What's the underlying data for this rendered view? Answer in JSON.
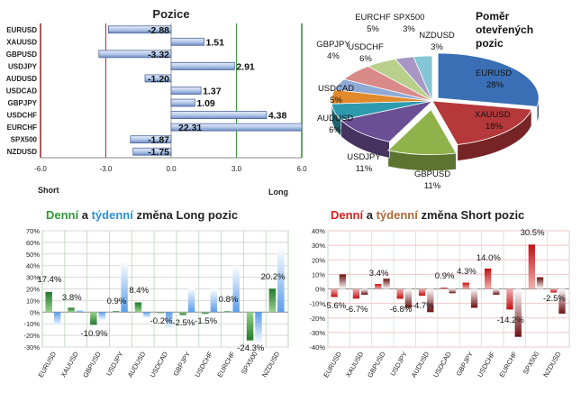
{
  "chart_data": [
    {
      "type": "bar",
      "orientation": "horizontal",
      "title": "Pozice",
      "categories": [
        "EURUSD",
        "XAUUSD",
        "GBPUSD",
        "USDJPY",
        "AUDUSD",
        "USDCAD",
        "GBPJPY",
        "USDCHF",
        "EURCHF",
        "SPX500",
        "NZDUSD"
      ],
      "values": [
        -2.88,
        1.51,
        -3.32,
        2.91,
        -1.2,
        1.37,
        1.09,
        4.38,
        22.31,
        -1.87,
        -1.75
      ],
      "value_labels": [
        "-2.88",
        "1.51",
        "-3.32",
        "2.91",
        "-1.20",
        "1.37",
        "1.09",
        "4.38",
        "22.31",
        "-1.87",
        "-1.75"
      ],
      "xlim": [
        -6,
        6
      ],
      "x_ticks": [
        "-6.0",
        "-3.0",
        "0.0",
        "3.0",
        "6.0"
      ],
      "left_label": "Short",
      "right_label": "Long",
      "grid": true
    },
    {
      "type": "pie",
      "title": "Poměr otevřených pozic",
      "slices": [
        {
          "name": "EURUSD",
          "pct": "28%",
          "value": 28,
          "color": "#3a6fb5"
        },
        {
          "name": "XAUUSD",
          "pct": "18%",
          "value": 18,
          "color": "#b5383a"
        },
        {
          "name": "GBPUSD",
          "pct": "11%",
          "value": 11,
          "color": "#8fb24a"
        },
        {
          "name": "USDJPY",
          "pct": "11%",
          "value": 11,
          "color": "#6b4f94"
        },
        {
          "name": "AUDUSD",
          "pct": "6%",
          "value": 6,
          "color": "#2e9ab0"
        },
        {
          "name": "USDCAD",
          "pct": "5%",
          "value": 5,
          "color": "#e08a2c"
        },
        {
          "name": "GBPJPY",
          "pct": "4%",
          "value": 4,
          "color": "#8ea9d6"
        },
        {
          "name": "USDCHF",
          "pct": "6%",
          "value": 6,
          "color": "#d98a88"
        },
        {
          "name": "EURCHF",
          "pct": "5%",
          "value": 5,
          "color": "#b9cf8c"
        },
        {
          "name": "SPX500",
          "pct": "3%",
          "value": 3,
          "color": "#a896c4"
        },
        {
          "name": "NZDUSD",
          "pct": "3%",
          "value": 3,
          "color": "#84c6d6"
        }
      ]
    },
    {
      "type": "bar",
      "title_parts": [
        "Denní",
        " a ",
        "týdenní",
        " změna Long pozic"
      ],
      "title_colors": [
        "#2e9a3a",
        "#222222",
        "#2e8fd6",
        "#222222"
      ],
      "categories": [
        "EURUSD",
        "XAUUSD",
        "GBPUSD",
        "USDJPY",
        "AUDUSD",
        "USDCAD",
        "GBPJPY",
        "USDCHF",
        "EURCHF",
        "SPX500",
        "NZDUSD"
      ],
      "series": [
        {
          "values": [
            17.4,
            3.8,
            -10.9,
            0.9,
            8.4,
            -0.2,
            -2.5,
            -1.5,
            0.8,
            -24.3,
            20.2
          ],
          "color": "#2e8b35"
        },
        {
          "values": [
            -12,
            2,
            -7,
            44,
            -5,
            -15,
            21,
            20,
            40,
            -28,
            56
          ],
          "color": "#6fa8e8"
        }
      ],
      "labels": [
        "17.4%",
        "3.8%",
        "-10.9%",
        "0.9%",
        "8.4%",
        "-0.2%",
        "-2.5%",
        "-1.5%",
        "0.8%",
        "-24.3%",
        "20.2%"
      ],
      "ylim": [
        -30,
        70
      ],
      "y_ticks": [
        "70%",
        "60%",
        "50%",
        "40%",
        "30%",
        "20%",
        "10%",
        "0%",
        "-10%",
        "-20%",
        "-30%"
      ],
      "grid": true
    },
    {
      "type": "bar",
      "title_parts": [
        "Denní",
        " a ",
        "týdenní",
        " změna Short pozic"
      ],
      "title_colors": [
        "#d42020",
        "#222222",
        "#b06a3a",
        "#222222"
      ],
      "categories": [
        "EURUSD",
        "XAUUSD",
        "GBPUSD",
        "USDJPY",
        "AUDUSD",
        "USDCAD",
        "GBPJPY",
        "USDCHF",
        "EURCHF",
        "SPX500",
        "NZDUSD"
      ],
      "series": [
        {
          "values": [
            -5.6,
            -6.7,
            3.4,
            -6.8,
            -4.7,
            0.9,
            4.3,
            14.0,
            -14.2,
            30.5,
            -2.5
          ],
          "color": "#d41a1a"
        },
        {
          "values": [
            10,
            -4,
            7,
            -13,
            -16,
            -3,
            -13,
            -4,
            -33,
            8,
            -17
          ],
          "color": "#7a1a1a"
        }
      ],
      "labels": [
        "-5.6%",
        "-6.7%",
        "3.4%",
        "-6.8%",
        "-4.7%",
        "0.9%",
        "4.3%",
        "14.0%",
        "-14.2%",
        "30.5%",
        "-2.5%"
      ],
      "ylim": [
        -40,
        40
      ],
      "y_ticks": [
        "40%",
        "30%",
        "20%",
        "10%",
        "0%",
        "-10%",
        "-20%",
        "-30%",
        "-40%"
      ],
      "grid": true
    }
  ]
}
